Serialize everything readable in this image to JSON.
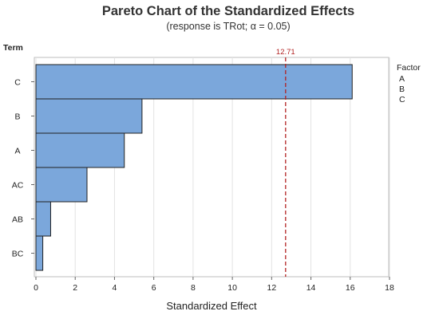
{
  "chart_data": {
    "type": "bar",
    "orientation": "horizontal",
    "title": "Pareto Chart of the Standardized Effects",
    "subtitle": "(response is TRot; α = 0.05)",
    "xlabel": "Standardized Effect",
    "ylabel": "Term",
    "categories": [
      "C",
      "B",
      "A",
      "AC",
      "AB",
      "BC"
    ],
    "values": [
      16.1,
      5.4,
      4.5,
      2.6,
      0.75,
      0.35
    ],
    "xlim": [
      0,
      18
    ],
    "xticks": [
      "0",
      "2",
      "4",
      "6",
      "8",
      "10",
      "12",
      "14",
      "16",
      "18"
    ],
    "reference_line": {
      "value": 12.71,
      "label": "12.71",
      "color": "#b22222",
      "style": "dashed"
    },
    "bar_color": "#7ba7db",
    "bar_edge_color": "#222222",
    "grid": true,
    "legend": {
      "title": "Factor",
      "entries": [
        "A",
        "B",
        "C"
      ],
      "placement": "right"
    }
  }
}
